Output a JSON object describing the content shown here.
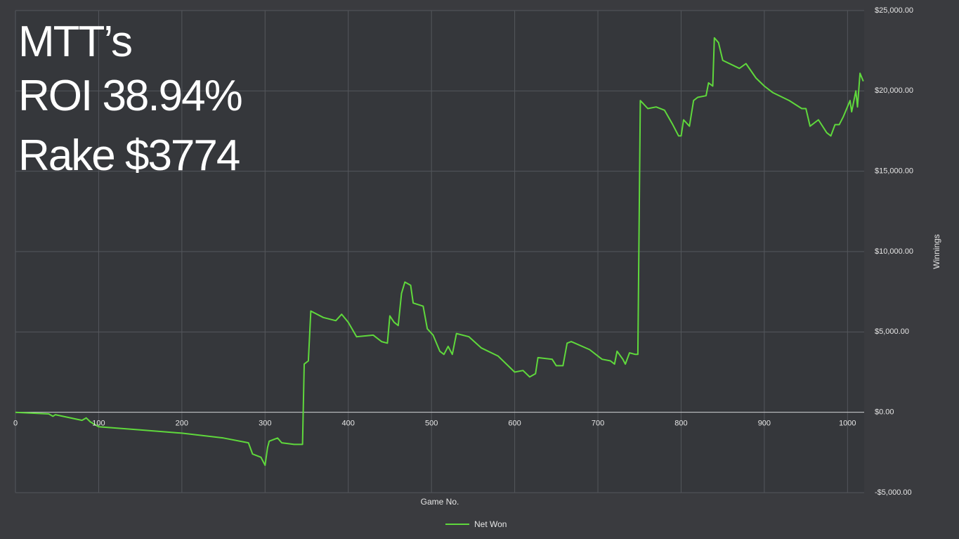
{
  "chart_data": {
    "type": "line",
    "annotations": [
      "MTT’s",
      "ROI 38.94%",
      "Rake $3774"
    ],
    "xlabel": "Game No.",
    "ylabel": "Winnings",
    "xlim": [
      0,
      1020
    ],
    "xticks": [
      0,
      100,
      200,
      300,
      400,
      500,
      600,
      700,
      800,
      900,
      1000
    ],
    "ylim": [
      -5000,
      25000
    ],
    "yticks": [
      {
        "value": -5000,
        "label": "-$5,000.00"
      },
      {
        "value": 0,
        "label": "$0.00"
      },
      {
        "value": 5000,
        "label": "$5,000.00"
      },
      {
        "value": 10000,
        "label": "$10,000.00"
      },
      {
        "value": 15000,
        "label": "$15,000.00"
      },
      {
        "value": 20000,
        "label": "$20,000.00"
      },
      {
        "value": 25000,
        "label": "$25,000.00"
      }
    ],
    "grid": true,
    "legend": "bottom",
    "series": [
      {
        "name": "Net Won",
        "color": "#5fd83c",
        "x": [
          0,
          40,
          45,
          48,
          80,
          85,
          90,
          100,
          150,
          200,
          250,
          280,
          285,
          295,
          300,
          303,
          305,
          315,
          320,
          335,
          345,
          347,
          352,
          355,
          370,
          385,
          392,
          400,
          410,
          430,
          440,
          447,
          450,
          455,
          460,
          464,
          468,
          475,
          478,
          490,
          495,
          502,
          510,
          515,
          520,
          525,
          530,
          545,
          560,
          580,
          600,
          610,
          618,
          625,
          628,
          645,
          650,
          658,
          663,
          668,
          690,
          705,
          715,
          720,
          723,
          730,
          733,
          738,
          745,
          748,
          751,
          760,
          770,
          780,
          790,
          797,
          800,
          803,
          810,
          815,
          820,
          830,
          833,
          838,
          840,
          845,
          850,
          870,
          878,
          890,
          900,
          910,
          930,
          945,
          950,
          955,
          965,
          975,
          980,
          985,
          990,
          995,
          1003,
          1005,
          1010,
          1012,
          1015,
          1019
        ],
        "values": [
          0,
          -100,
          -250,
          -150,
          -500,
          -350,
          -600,
          -900,
          -1100,
          -1300,
          -1600,
          -1900,
          -2600,
          -2800,
          -3300,
          -2200,
          -1800,
          -1600,
          -1900,
          -2000,
          -2000,
          3000,
          3200,
          6300,
          5900,
          5700,
          6100,
          5600,
          4700,
          4800,
          4400,
          4300,
          6000,
          5600,
          5400,
          7400,
          8100,
          7900,
          6800,
          6600,
          5200,
          4800,
          3800,
          3600,
          4100,
          3600,
          4900,
          4700,
          4000,
          3500,
          2500,
          2600,
          2200,
          2400,
          3400,
          3300,
          2900,
          2900,
          4300,
          4400,
          3900,
          3300,
          3200,
          3000,
          3800,
          3300,
          3000,
          3700,
          3600,
          3600,
          19400,
          18900,
          19000,
          18800,
          17900,
          17200,
          17200,
          18200,
          17800,
          19400,
          19600,
          19700,
          20500,
          20300,
          23300,
          23000,
          21900,
          21400,
          21700,
          20800,
          20300,
          19900,
          19400,
          18900,
          18900,
          17800,
          18200,
          17400,
          17200,
          17900,
          17900,
          18400,
          19400,
          18700,
          20000,
          19000,
          21100,
          20600
        ]
      }
    ]
  }
}
